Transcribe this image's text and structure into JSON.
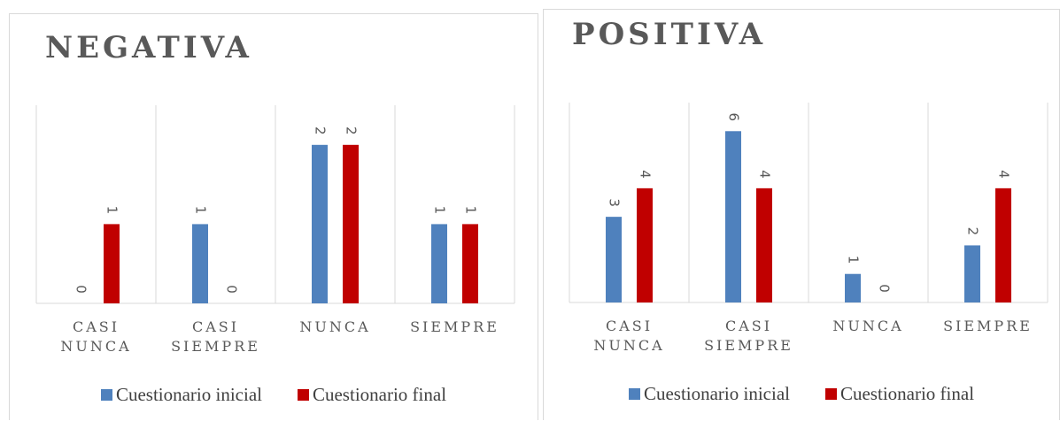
{
  "chart_data": [
    {
      "type": "bar",
      "title": "NEGATIVA",
      "categories": [
        "CASI NUNCA",
        "CASI SIEMPRE",
        "NUNCA",
        "SIEMPRE"
      ],
      "series": [
        {
          "name": "Cuestionario inicial",
          "color": "#4f81bd",
          "values": [
            0,
            1,
            2,
            1
          ]
        },
        {
          "name": "Cuestionario final",
          "color": "#c00000",
          "values": [
            1,
            0,
            2,
            1
          ]
        }
      ],
      "ylim": [
        0,
        2.5
      ],
      "legend": "bottom"
    },
    {
      "type": "bar",
      "title": "POSITIVA",
      "categories": [
        "CASI NUNCA",
        "CASI SIEMPRE",
        "NUNCA",
        "SIEMPRE"
      ],
      "series": [
        {
          "name": "Cuestionario inicial",
          "color": "#4f81bd",
          "values": [
            3,
            6,
            1,
            2
          ]
        },
        {
          "name": "Cuestionario final",
          "color": "#c00000",
          "values": [
            4,
            4,
            0,
            4
          ]
        }
      ],
      "ylim": [
        0,
        7
      ],
      "legend": "bottom"
    }
  ]
}
